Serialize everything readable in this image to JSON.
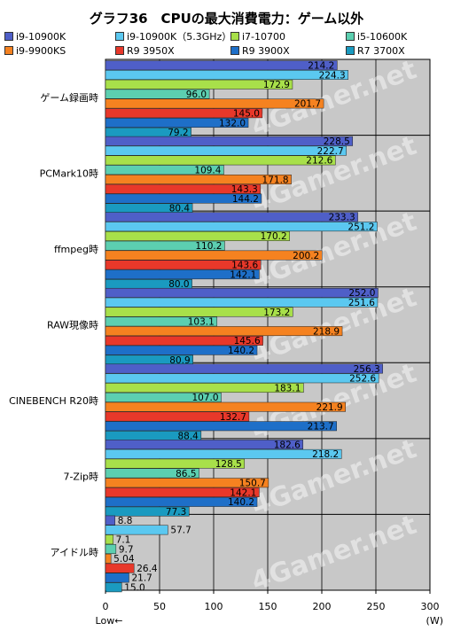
{
  "chart_data": {
    "type": "bar",
    "orientation": "horizontal",
    "title": "グラフ36　CPUの最大消費電力：ゲーム以外",
    "categories": [
      "ゲーム録画時",
      "PCMark10時",
      "ffmpeg時",
      "RAW現像時",
      "CINEBENCH R20時",
      "7-Zip時",
      "アイドル時"
    ],
    "series": [
      {
        "name": "i9-10900K",
        "color": "#4f5fc8",
        "values": [
          214.2,
          228.5,
          233.3,
          252.0,
          256.3,
          182.6,
          8.8
        ]
      },
      {
        "name": "i9-10900K（5.3GHz）",
        "color": "#5bc8f0",
        "values": [
          224.3,
          222.7,
          251.2,
          251.6,
          252.6,
          218.2,
          57.7
        ]
      },
      {
        "name": "i7-10700",
        "color": "#a8e04a",
        "values": [
          172.9,
          212.6,
          170.2,
          173.2,
          183.1,
          128.5,
          7.1
        ]
      },
      {
        "name": "i5-10600K",
        "color": "#5ccfb0",
        "values": [
          96.0,
          109.4,
          110.2,
          103.1,
          107.0,
          86.5,
          9.7
        ]
      },
      {
        "name": "i9-9900KS",
        "color": "#f58220",
        "values": [
          201.7,
          171.8,
          200.2,
          218.9,
          221.9,
          150.7,
          5.04
        ]
      },
      {
        "name": "R9 3950X",
        "color": "#e8382a",
        "values": [
          145.0,
          143.3,
          143.6,
          145.6,
          132.7,
          142.1,
          26.4
        ]
      },
      {
        "name": "R9 3900X",
        "color": "#1e6fc8",
        "values": [
          132.0,
          144.2,
          142.1,
          140.2,
          213.7,
          140.2,
          21.7
        ]
      },
      {
        "name": "R7 3700X",
        "color": "#1a9ac0",
        "values": [
          79.2,
          80.4,
          80.0,
          80.9,
          88.4,
          77.3,
          15.0
        ]
      }
    ],
    "value_labels": [
      [
        "214.2",
        "224.3",
        "172.9",
        "96.0",
        "201.7",
        "145.0",
        "132.0",
        "79.2"
      ],
      [
        "228.5",
        "222.7",
        "212.6",
        "109.4",
        "171.8",
        "143.3",
        "144.2",
        "80.4"
      ],
      [
        "233.3",
        "251.2",
        "170.2",
        "110.2",
        "200.2",
        "143.6",
        "142.1",
        "80.0"
      ],
      [
        "252.0",
        "251.6",
        "173.2",
        "103.1",
        "218.9",
        "145.6",
        "140.2",
        "80.9"
      ],
      [
        "256.3",
        "252.6",
        "183.1",
        "107.0",
        "221.9",
        "132.7",
        "213.7",
        "88.4"
      ],
      [
        "182.6",
        "218.2",
        "128.5",
        "86.5",
        "150.7",
        "142.1",
        "140.2",
        "77.3"
      ],
      [
        "8.8",
        "57.7",
        "7.1",
        "9.7",
        "5.04",
        "26.4",
        "21.7",
        "15.0"
      ]
    ],
    "xlim": [
      0,
      300
    ],
    "xticks": [
      "0",
      "50",
      "100",
      "150",
      "200",
      "250",
      "300"
    ],
    "xunit": "(W)",
    "low_label": "Low←",
    "watermark": "4Gamer.net",
    "grid": true,
    "legend_position": "top"
  }
}
